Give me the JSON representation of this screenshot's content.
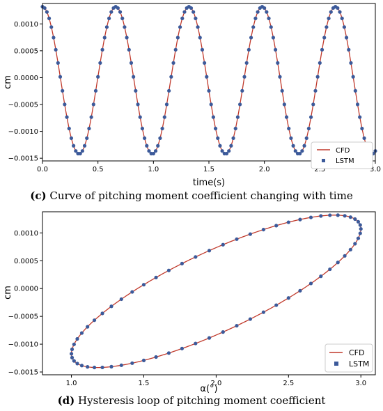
{
  "captions": {
    "c_letter": "(c)",
    "c_text": " Curve of pitching moment coefficient changing with time",
    "d_letter": "(d)",
    "d_text": " Hysteresis loop of pitching moment coefficient"
  },
  "chart_data": [
    {
      "type": "line",
      "xlabel": "time(s)",
      "ylabel": "cm",
      "xlim": [
        0.0,
        3.0
      ],
      "ylim": [
        -0.00155,
        0.00138
      ],
      "xticks": [
        0.0,
        0.5,
        1.0,
        1.5,
        2.0,
        2.5,
        3.0
      ],
      "xtick_labels": [
        "0.0",
        "0.5",
        "1.0",
        "1.5",
        "2.0",
        "2.5",
        "3.0"
      ],
      "yticks": [
        0.001,
        0.0005,
        0.0,
        -0.0005,
        -0.001,
        -0.0015
      ],
      "ytick_labels": [
        "0.0010",
        "0.0005",
        "0.0000",
        "−0.0005",
        "−0.0010",
        "−0.0015"
      ],
      "grid": false,
      "legend_position": "bottom-right",
      "model": {
        "mean": -5e-05,
        "amplitude": 0.00137,
        "period_s": 0.66,
        "phase_peak_s": 0.0
      },
      "series": [
        {
          "name": "CFD",
          "style": "line",
          "color": "#c0392b"
        },
        {
          "name": "LSTM",
          "style": "marker",
          "color": "#3c5a9a"
        }
      ],
      "sample_step_s": 0.02
    },
    {
      "type": "scatter",
      "xlabel": "α(°)",
      "ylabel": "cm",
      "xlim": [
        0.8,
        3.1
      ],
      "ylim": [
        -0.00155,
        0.00138
      ],
      "xticks": [
        1.0,
        1.5,
        2.0,
        2.5,
        3.0
      ],
      "xtick_labels": [
        "1.0",
        "1.5",
        "2.0",
        "2.5",
        "3.0"
      ],
      "yticks": [
        0.001,
        0.0005,
        0.0,
        -0.0005,
        -0.001,
        -0.0015
      ],
      "ytick_labels": [
        "0.0010",
        "0.0005",
        "0.0000",
        "−0.0005",
        "−0.0010",
        "−0.0015"
      ],
      "grid": false,
      "legend_position": "bottom-right",
      "loop": {
        "alpha_center": 2.0,
        "alpha_amplitude": 1.0,
        "cm_mean": -5e-05,
        "cm_amplitude": 0.00137,
        "phase_lag_deg": 35
      },
      "series": [
        {
          "name": "CFD",
          "style": "line",
          "color": "#c0392b"
        },
        {
          "name": "LSTM",
          "style": "marker",
          "color": "#3c5a9a"
        }
      ],
      "marker_count": 66
    }
  ]
}
